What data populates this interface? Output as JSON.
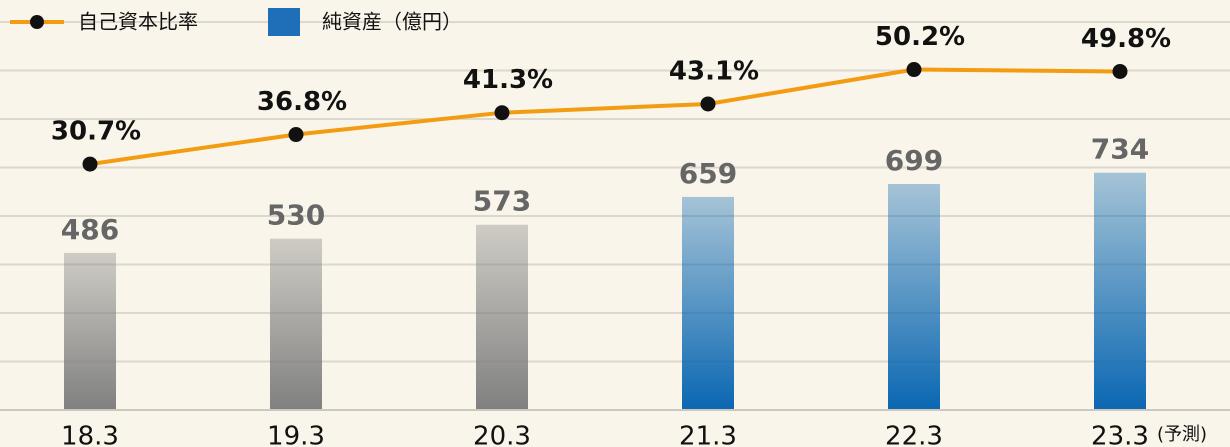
{
  "chart_data": {
    "type": "bar_line",
    "categories": [
      "18.3",
      "19.3",
      "20.3",
      "21.3",
      "22.3",
      "23.3"
    ],
    "annotation": "(予測)",
    "series": [
      {
        "name": "純資産（億円）",
        "type": "bar",
        "color": "#1f6fb8",
        "colors": [
          "#808080",
          "#808080",
          "#808080",
          "#0a67b2",
          "#0a67b2",
          "#0a67b2"
        ],
        "values": [
          486,
          530,
          573,
          659,
          699,
          734
        ]
      },
      {
        "name": "自己資本比率",
        "type": "line",
        "color": "#f39c12",
        "axis": "y2",
        "values": [
          30.7,
          36.8,
          41.3,
          43.1,
          50.2,
          49.8
        ],
        "value_labels": [
          "30.7%",
          "36.8%",
          "41.3%",
          "43.1%",
          "50.2%",
          "49.8%"
        ]
      }
    ],
    "ylim": [
      0,
      1200
    ],
    "yticks": [
      0,
      150,
      300,
      450,
      600,
      750,
      900,
      1050,
      1200
    ],
    "y2lim": [
      -20,
      60
    ],
    "grid": true,
    "legend": "top-left"
  }
}
